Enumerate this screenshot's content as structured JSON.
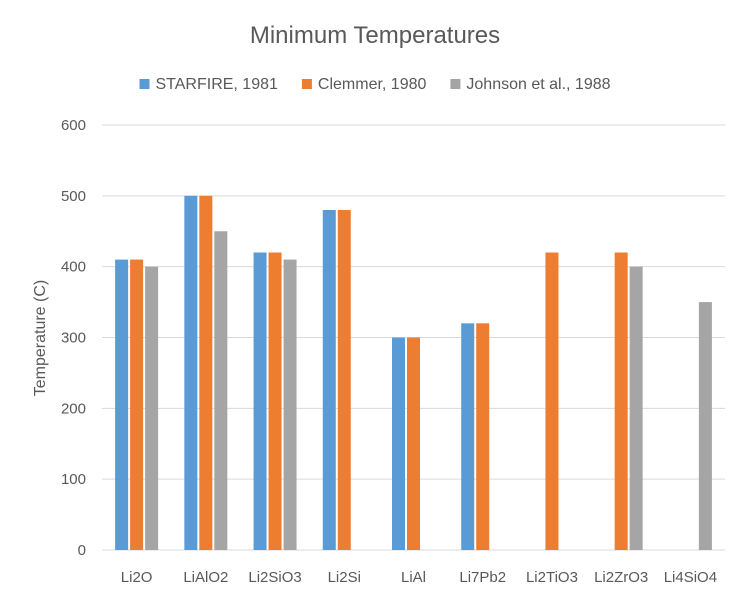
{
  "chart_data": {
    "type": "bar",
    "title": "Minimum Temperatures",
    "ylabel": "Temperature (C)",
    "xlabel": "",
    "ylim": [
      0,
      600
    ],
    "yticks": [
      0,
      100,
      200,
      300,
      400,
      500,
      600
    ],
    "grid": true,
    "legend_position": "top",
    "categories": [
      "Li2O",
      "LiAlO2",
      "Li2SiO3",
      "Li2Si",
      "LiAl",
      "Li7Pb2",
      "Li2TiO3",
      "Li2ZrO3",
      "Li4SiO4"
    ],
    "series": [
      {
        "name": "STARFIRE, 1981",
        "color": "#5b9bd5",
        "values": [
          410,
          500,
          420,
          480,
          300,
          320,
          null,
          null,
          null
        ]
      },
      {
        "name": "Clemmer, 1980",
        "color": "#ed7d31",
        "values": [
          410,
          500,
          420,
          480,
          300,
          320,
          420,
          420,
          null
        ]
      },
      {
        "name": "Johnson et al., 1988",
        "color": "#a5a5a5",
        "values": [
          400,
          450,
          410,
          null,
          null,
          null,
          null,
          400,
          350
        ]
      }
    ]
  }
}
